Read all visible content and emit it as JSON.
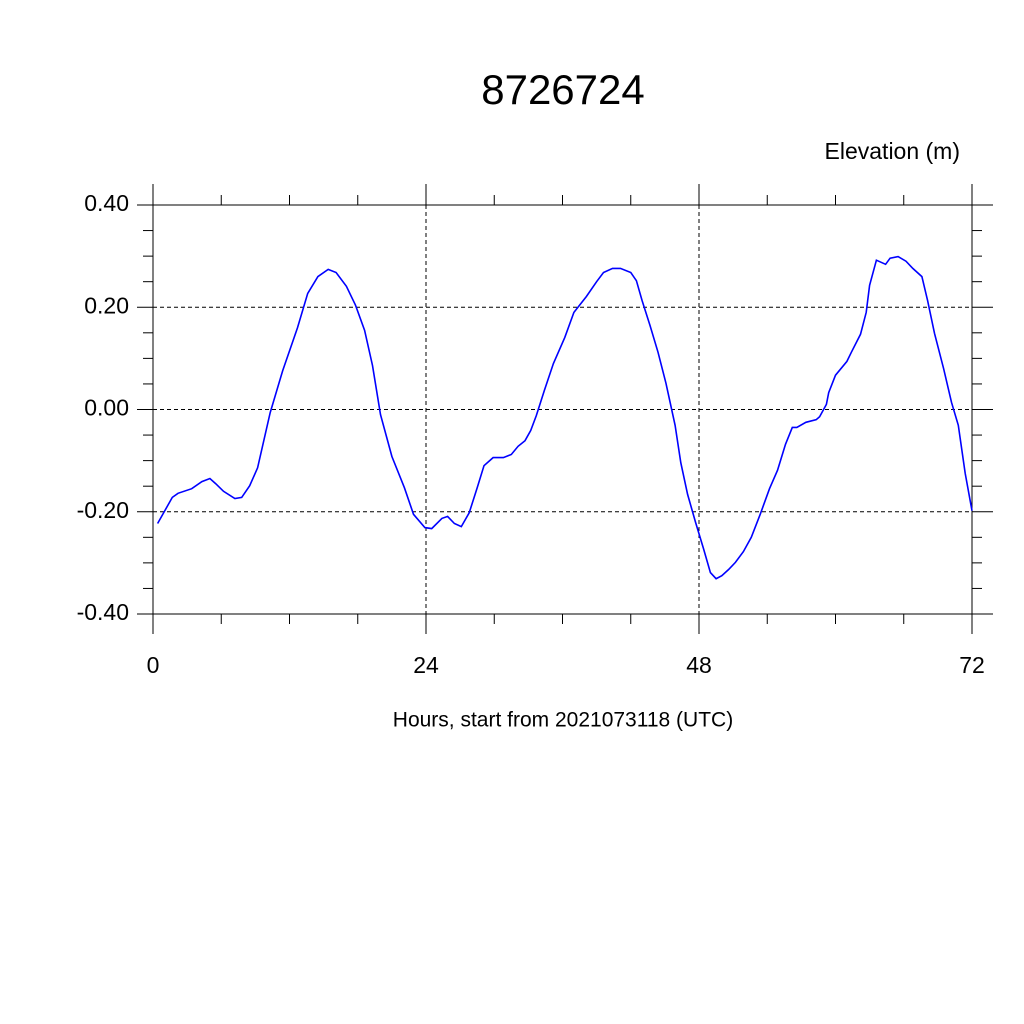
{
  "chart_data": {
    "type": "line",
    "title": "8726724",
    "ylabel": "Elevation (m)",
    "xlabel": "Hours, start from 2021073118 (UTC)",
    "xlim": [
      0,
      72
    ],
    "ylim": [
      -0.4,
      0.4
    ],
    "xticks": [
      0,
      24,
      48,
      72
    ],
    "yticks": [
      {
        "value": -0.4,
        "label": "-0.40"
      },
      {
        "value": -0.2,
        "label": "-0.20"
      },
      {
        "value": 0,
        "label": "0.00"
      },
      {
        "value": 0.2,
        "label": "0.20"
      },
      {
        "value": 0.4,
        "label": "0.40"
      }
    ],
    "grid": true,
    "series": [
      {
        "color": "#0000ff",
        "x": [
          0.4,
          1.7,
          2.2,
          3.4,
          4.3,
          5.0,
          5.5,
          6.2,
          7.2,
          7.8,
          8.5,
          9.2,
          10.3,
          11.4,
          12.7,
          13.6,
          14.5,
          15.4,
          16.1,
          17.0,
          17.8,
          18.6,
          19.3,
          20.0,
          21.0,
          22.1,
          22.9,
          23.9,
          24.5,
          25.4,
          25.9,
          26.5,
          27.1,
          27.8,
          28.5,
          29.1,
          29.9,
          30.8,
          31.5,
          32.1,
          32.7,
          33.2,
          33.7,
          34.4,
          35.2,
          36.2,
          37.0,
          38.1,
          39.0,
          39.6,
          40.4,
          41.1,
          42.0,
          42.5,
          43.0,
          43.7,
          44.4,
          45.1,
          45.9,
          46.4,
          47.0,
          47.7,
          48.4,
          49.0,
          49.5,
          50.0,
          50.6,
          51.2,
          51.9,
          52.6,
          53.4,
          54.2,
          54.9,
          55.6,
          56.2,
          56.6,
          57.4,
          58.3,
          58.6,
          59.2,
          59.4,
          60.0,
          61.0,
          61.4,
          62.2,
          62.7,
          63.0,
          63.6,
          64.4,
          64.8,
          65.5,
          66.2,
          66.8,
          67.6,
          68.1,
          68.7,
          69.5,
          70.2,
          70.8,
          71.4,
          72.0
        ],
        "values": [
          -0.223,
          -0.172,
          -0.164,
          -0.155,
          -0.141,
          -0.135,
          -0.145,
          -0.16,
          -0.174,
          -0.172,
          -0.149,
          -0.114,
          -0.006,
          0.076,
          0.16,
          0.227,
          0.26,
          0.274,
          0.268,
          0.241,
          0.204,
          0.155,
          0.086,
          -0.01,
          -0.092,
          -0.153,
          -0.205,
          -0.231,
          -0.233,
          -0.213,
          -0.209,
          -0.223,
          -0.229,
          -0.202,
          -0.153,
          -0.11,
          -0.094,
          -0.094,
          -0.088,
          -0.072,
          -0.061,
          -0.041,
          -0.012,
          0.037,
          0.09,
          0.141,
          0.19,
          0.221,
          0.25,
          0.268,
          0.276,
          0.276,
          0.268,
          0.252,
          0.213,
          0.164,
          0.112,
          0.051,
          -0.031,
          -0.104,
          -0.166,
          -0.221,
          -0.272,
          -0.319,
          -0.331,
          -0.325,
          -0.313,
          -0.299,
          -0.278,
          -0.25,
          -0.204,
          -0.155,
          -0.119,
          -0.068,
          -0.035,
          -0.035,
          -0.025,
          -0.02,
          -0.014,
          0.01,
          0.033,
          0.067,
          0.094,
          0.112,
          0.147,
          0.19,
          0.243,
          0.292,
          0.284,
          0.296,
          0.299,
          0.29,
          0.276,
          0.26,
          0.213,
          0.149,
          0.08,
          0.014,
          -0.031,
          -0.125,
          -0.198
        ]
      }
    ]
  }
}
